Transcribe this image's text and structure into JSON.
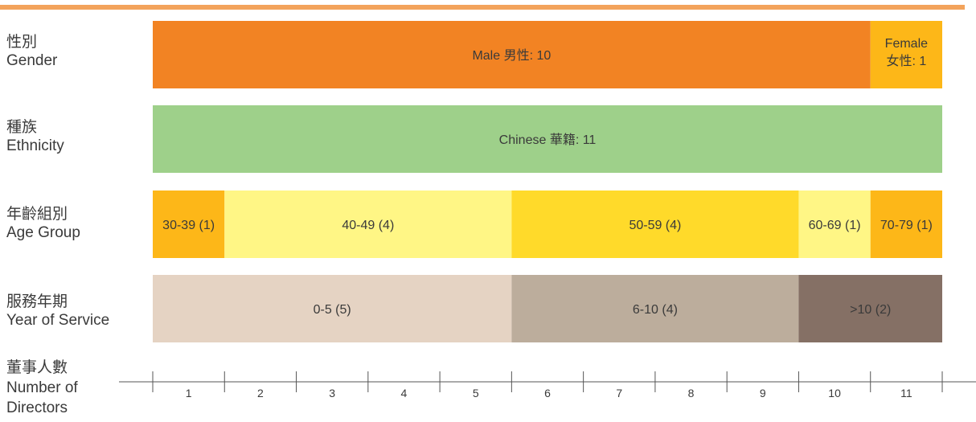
{
  "colors": {
    "top_rule": "#F3A35B",
    "male": "#F28323",
    "female": "#FDB718",
    "chinese": "#9ED08A",
    "age_30_39": "#FDB718",
    "age_40_49": "#FFF685",
    "age_50_59": "#FFDA2A",
    "age_60_69": "#FFF685",
    "age_70_79": "#FDB718",
    "service_0_5": "#E5D3C3",
    "service_6_10": "#BCAD9C",
    "service_gt10": "#857065",
    "text": "#3a3a3a",
    "axis": "#555555"
  },
  "chart_data": {
    "type": "bar",
    "orientation": "horizontal",
    "stacked": true,
    "rows": [
      {
        "label_zh": "性別",
        "label_en": "Gender",
        "segments": [
          {
            "label": "Male 男性: 10",
            "value": 10,
            "color_key": "male"
          },
          {
            "label_line1": "Female",
            "label_line2": "女性: 1",
            "value": 1,
            "color_key": "female"
          }
        ]
      },
      {
        "label_zh": "種族",
        "label_en": "Ethnicity",
        "segments": [
          {
            "label": "Chinese 華籍: 11",
            "value": 11,
            "color_key": "chinese"
          }
        ]
      },
      {
        "label_zh": "年齡組別",
        "label_en": "Age Group",
        "segments": [
          {
            "label": "30-39 (1)",
            "value": 1,
            "color_key": "age_30_39"
          },
          {
            "label": "40-49 (4)",
            "value": 4,
            "color_key": "age_40_49"
          },
          {
            "label": "50-59 (4)",
            "value": 4,
            "color_key": "age_50_59"
          },
          {
            "label": "60-69 (1)",
            "value": 1,
            "color_key": "age_60_69"
          },
          {
            "label": "70-79 (1)",
            "value": 1,
            "color_key": "age_70_79"
          }
        ]
      },
      {
        "label_zh": "服務年期",
        "label_en": "Year of Service",
        "segments": [
          {
            "label": "0-5 (5)",
            "value": 5,
            "color_key": "service_0_5"
          },
          {
            "label": "6-10 (4)",
            "value": 4,
            "color_key": "service_6_10"
          },
          {
            "label": ">10 (2)",
            "value": 2,
            "color_key": "service_gt10"
          }
        ]
      }
    ],
    "xaxis": {
      "label_zh": "董事人數",
      "label_en_line1": "Number of",
      "label_en_line2": "Directors",
      "ticks": [
        "1",
        "2",
        "3",
        "4",
        "5",
        "6",
        "7",
        "8",
        "9",
        "10",
        "11"
      ],
      "range": [
        0,
        11
      ]
    }
  }
}
